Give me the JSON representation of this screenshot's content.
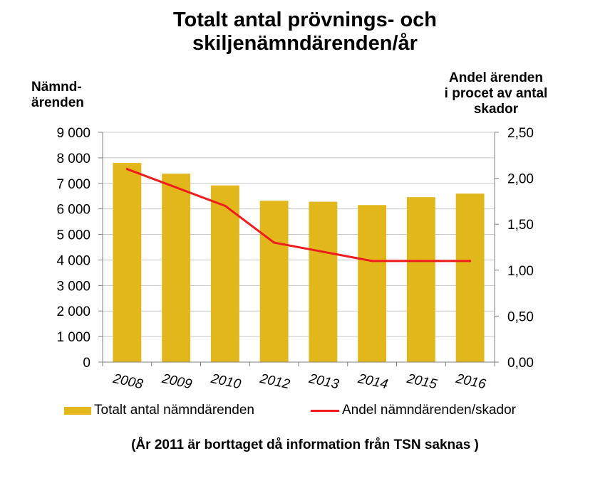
{
  "chart_data": {
    "type": "bar",
    "title": [
      "Totalt antal prövnings- och",
      "skiljenämndärenden/år"
    ],
    "ylabel_left": [
      "Nämnd-",
      "ärenden"
    ],
    "ylabel_right": [
      "Andel ärenden",
      "i procet av antal",
      "skador"
    ],
    "categories": [
      "2008",
      "2009",
      "2010",
      "2012",
      "2013",
      "2014",
      "2015",
      "2016"
    ],
    "ylim": [
      0,
      9000
    ],
    "y2lim": [
      0,
      2.5
    ],
    "yticks": [
      "0",
      "1 000",
      "2 000",
      "3 000",
      "4 000",
      "5 000",
      "6 000",
      "7 000",
      "8 000",
      "9 000"
    ],
    "y2ticks": [
      "0,00",
      "0,50",
      "1,00",
      "1,50",
      "2,00",
      "2,50"
    ],
    "grid": true,
    "legend_position": "bottom",
    "series": [
      {
        "name": "Totalt antal nämndärenden",
        "type": "bar",
        "axis": "left",
        "color": "#E2B71B",
        "values": [
          7800,
          7380,
          6920,
          6320,
          6280,
          6150,
          6460,
          6600
        ]
      },
      {
        "name": "Andel nämndärenden/skador",
        "type": "line",
        "axis": "right",
        "color": "#EE1C1C",
        "values": [
          2.1,
          1.9,
          1.7,
          1.3,
          1.2,
          1.1,
          1.1,
          1.1
        ]
      }
    ],
    "footnote": "(År 2011 är borttaget då information från TSN saknas )"
  }
}
